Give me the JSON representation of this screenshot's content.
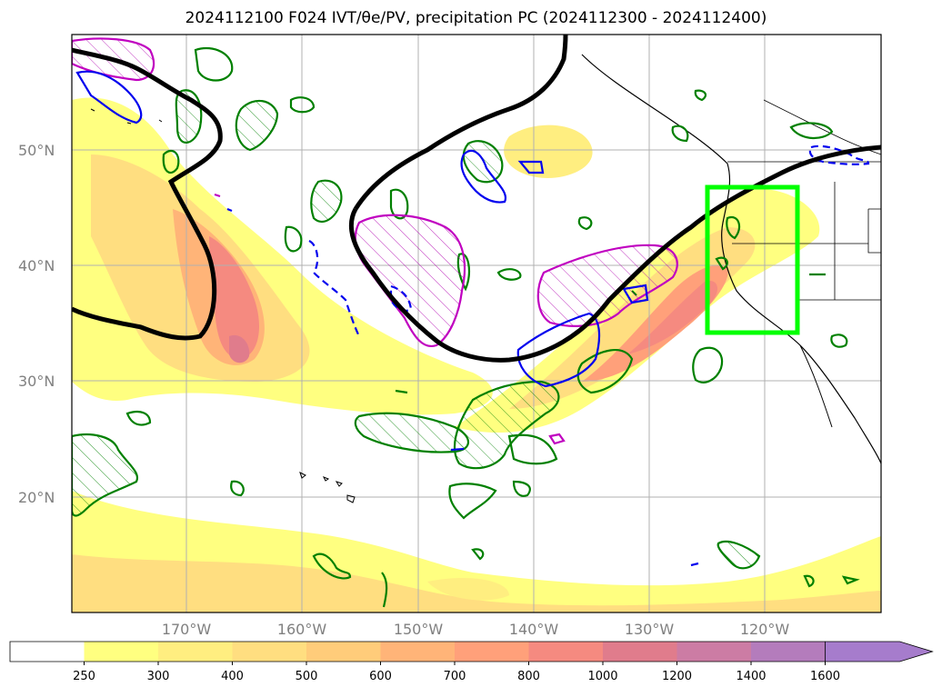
{
  "title": "2024112100 F024 IVT/θe/PV, precipitation PC (2024112300 - 2024112400)",
  "map": {
    "lat_labels": [
      "50°N",
      "40°N",
      "30°N",
      "20°N"
    ],
    "lon_labels": [
      "170°W",
      "160°W",
      "150°W",
      "140°W",
      "130°W",
      "120°W"
    ],
    "highlight_box_color": "#00ff00",
    "contour_colors": {
      "ivt_fill_low": "#ffff7f",
      "ivt_fill_high": "#f08080",
      "pv_contour": "#008000",
      "theta_e_contour": "#000000",
      "positive_anomaly": "#c000c0",
      "negative_anomaly": "#0000ee"
    }
  },
  "colorbar": {
    "ticks": [
      "250",
      "300",
      "400",
      "500",
      "600",
      "700",
      "800",
      "1000",
      "1200",
      "1400",
      "1600"
    ],
    "colors": [
      "#ffffff",
      "#ffff80",
      "#ffee80",
      "#ffde80",
      "#ffcc7a",
      "#ffb478",
      "#ffa07a",
      "#f58a80",
      "#e07c8c",
      "#cc7ca4",
      "#b47cbc",
      "#a67ccc"
    ]
  }
}
